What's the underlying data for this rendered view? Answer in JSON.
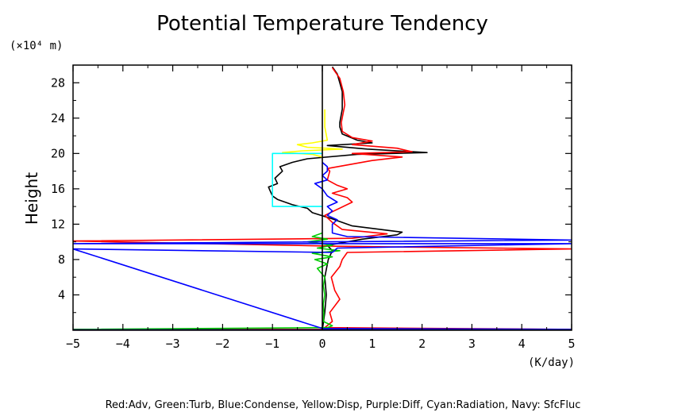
{
  "chart_data": {
    "type": "line",
    "title": "Potential Temperature Tendency",
    "ylabel": "Height",
    "y_unit": "(×10⁴ m)",
    "x_unit": "(K/day)",
    "legend_text": "Red:Adv, Green:Turb, Blue:Condense, Yellow:Disp, Purple:Diff, Cyan:Radiation, Navy: SfcFluc",
    "xlim": [
      -5,
      5
    ],
    "ylim": [
      0,
      30
    ],
    "x_ticks": [
      -5,
      -4,
      -3,
      -2,
      -1,
      0,
      1,
      2,
      3,
      4,
      5
    ],
    "x_tick_labels": [
      "−5",
      "−4",
      "−3",
      "−2",
      "−1",
      "0",
      "1",
      "2",
      "3",
      "4",
      "5"
    ],
    "y_ticks": [
      4,
      8,
      12,
      16,
      20,
      24,
      28
    ],
    "y_tick_labels": [
      "4",
      "8",
      "12",
      "16",
      "20",
      "24",
      "28"
    ],
    "grid": false,
    "series": [
      {
        "key": "total",
        "color": "#000000",
        "points": [
          [
            0,
            0
          ],
          [
            0.05,
            2
          ],
          [
            0.08,
            4
          ],
          [
            0.05,
            6
          ],
          [
            0.12,
            8
          ],
          [
            0.2,
            9
          ],
          [
            0.1,
            9.6
          ],
          [
            0.8,
            10.3
          ],
          [
            1.5,
            10.8
          ],
          [
            1.6,
            11.1
          ],
          [
            0.6,
            11.8
          ],
          [
            0.2,
            12.6
          ],
          [
            -0.2,
            13.3
          ],
          [
            -0.3,
            13.8
          ],
          [
            -0.6,
            14.2
          ],
          [
            -0.9,
            14.8
          ],
          [
            -1.0,
            15.2
          ],
          [
            -1.05,
            15.8
          ],
          [
            -1.08,
            16.2
          ],
          [
            -0.9,
            16.6
          ],
          [
            -0.95,
            17.2
          ],
          [
            -0.8,
            18.0
          ],
          [
            -0.85,
            18.5
          ],
          [
            -0.6,
            19.0
          ],
          [
            -0.3,
            19.4
          ],
          [
            0.7,
            19.9
          ],
          [
            2.1,
            20.1
          ],
          [
            0.9,
            20.5
          ],
          [
            0.1,
            20.9
          ],
          [
            1.0,
            21.2
          ],
          [
            0.7,
            21.5
          ],
          [
            0.4,
            22.2
          ],
          [
            0.35,
            23.0
          ],
          [
            0.35,
            23.5
          ],
          [
            0.4,
            25.0
          ],
          [
            0.4,
            27.0
          ],
          [
            0.35,
            28.0
          ],
          [
            0.3,
            29.0
          ],
          [
            0.2,
            29.8
          ]
        ]
      },
      {
        "key": "Adv",
        "color": "#ff0000",
        "points": [
          [
            -5,
            0.1
          ],
          [
            5,
            0.1
          ],
          [
            0.05,
            0.3
          ],
          [
            0.2,
            1.0
          ],
          [
            0.15,
            2.0
          ],
          [
            0.35,
            3.5
          ],
          [
            0.25,
            4.5
          ],
          [
            0.18,
            6.0
          ],
          [
            0.35,
            7.2
          ],
          [
            0.4,
            8.0
          ],
          [
            0.5,
            8.8
          ],
          [
            5,
            9.2
          ],
          [
            0.3,
            9.5
          ],
          [
            -5,
            10.1
          ],
          [
            0.6,
            10.4
          ],
          [
            1.3,
            10.9
          ],
          [
            0.4,
            11.4
          ],
          [
            0.2,
            12.2
          ],
          [
            0.05,
            13.0
          ],
          [
            0.6,
            14.5
          ],
          [
            0.5,
            15.0
          ],
          [
            0.2,
            15.5
          ],
          [
            0.5,
            16.0
          ],
          [
            0.3,
            16.4
          ],
          [
            0.1,
            17.0
          ],
          [
            0.15,
            18.0
          ],
          [
            0.1,
            18.3
          ],
          [
            1.0,
            19.2
          ],
          [
            1.6,
            19.6
          ],
          [
            0.6,
            20.0
          ],
          [
            1.8,
            20.2
          ],
          [
            1.5,
            20.6
          ],
          [
            0.6,
            21.0
          ],
          [
            1.0,
            21.4
          ],
          [
            0.6,
            21.8
          ],
          [
            0.4,
            22.5
          ],
          [
            0.38,
            23.5
          ],
          [
            0.45,
            25.5
          ],
          [
            0.42,
            27.0
          ],
          [
            0.35,
            28.5
          ],
          [
            0.2,
            29.7
          ]
        ]
      },
      {
        "key": "Turb",
        "color": "#00cc00",
        "points": [
          [
            -5,
            0.1
          ],
          [
            0.1,
            0.3
          ],
          [
            0.2,
            0.5
          ],
          [
            0.02,
            1.0
          ],
          [
            0.03,
            2.0
          ],
          [
            0.02,
            3.0
          ],
          [
            0.05,
            4.0
          ],
          [
            0.02,
            5.0
          ],
          [
            0.05,
            6.0
          ],
          [
            -0.1,
            7.0
          ],
          [
            0.1,
            7.5
          ],
          [
            -0.15,
            8.0
          ],
          [
            0.2,
            8.3
          ],
          [
            -0.2,
            8.7
          ],
          [
            0.35,
            9.0
          ],
          [
            -0.1,
            9.3
          ],
          [
            0.2,
            9.6
          ],
          [
            -0.3,
            10.0
          ],
          [
            0.1,
            10.3
          ],
          [
            -0.2,
            10.6
          ],
          [
            0.0,
            11.0
          ]
        ]
      },
      {
        "key": "Condense",
        "color": "#0000ff",
        "points": [
          [
            5,
            0.1
          ],
          [
            0.0,
            0.2
          ],
          [
            -5,
            9.2
          ],
          [
            0.2,
            8.8
          ],
          [
            0.3,
            9.3
          ],
          [
            5,
            9.8
          ],
          [
            -5,
            9.8
          ],
          [
            5,
            10.2
          ],
          [
            0.5,
            10.6
          ],
          [
            0.2,
            11.0
          ],
          [
            0.2,
            12.0
          ],
          [
            0.3,
            12.5
          ],
          [
            0.1,
            13.0
          ],
          [
            0.2,
            13.5
          ],
          [
            0.1,
            14.0
          ],
          [
            0.3,
            14.5
          ],
          [
            0.1,
            15.2
          ],
          [
            0.0,
            16.0
          ],
          [
            -0.15,
            16.6
          ],
          [
            0.1,
            17.0
          ],
          [
            0.0,
            17.5
          ],
          [
            0.1,
            18.0
          ],
          [
            0.1,
            18.5
          ],
          [
            0.0,
            19.0
          ]
        ]
      },
      {
        "key": "Disp",
        "color": "#ffff00",
        "points": [
          [
            0,
            19.6
          ],
          [
            -0.2,
            19.9
          ],
          [
            -0.8,
            20.1
          ],
          [
            -0.4,
            20.3
          ],
          [
            0.4,
            20.5
          ],
          [
            -0.3,
            20.7
          ],
          [
            -0.5,
            21.0
          ],
          [
            -0.2,
            21.2
          ],
          [
            0.1,
            21.5
          ],
          [
            0.05,
            23.0
          ],
          [
            0.05,
            25.0
          ]
        ]
      },
      {
        "key": "Radiation",
        "color": "#00ffff",
        "points": [
          [
            0,
            14.0
          ],
          [
            -1.0,
            14.0
          ],
          [
            -1.0,
            20.0
          ],
          [
            0,
            20.0
          ]
        ]
      },
      {
        "key": "SfcFluc",
        "color": "#000080",
        "points": [
          [
            -5,
            0.05
          ],
          [
            5,
            0.05
          ]
        ]
      }
    ]
  }
}
